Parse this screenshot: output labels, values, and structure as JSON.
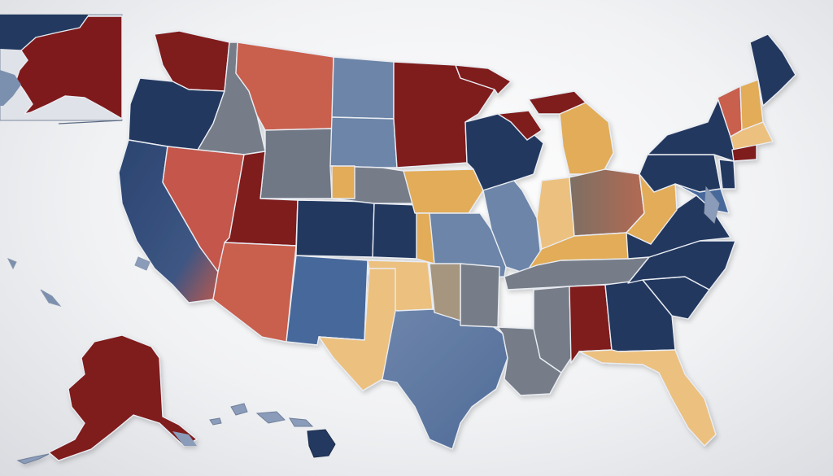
{
  "map": {
    "kind": "choropleth-us-states",
    "labels": [],
    "colors": {
      "dark_blue": "#23395f",
      "mid_blue": "#46679a",
      "steel_blue": "#6c85a8",
      "slate_gray": "#767d88",
      "dark_red": "#7f1a1c",
      "coral": "#c4574b",
      "gold": "#e2ac58",
      "sand": "#ecc07e",
      "tan_gray": "#a6967f"
    }
  },
  "inset": {
    "alaska_top": "alaska",
    "alaska_bottom": "alaska",
    "hawaii": "hawaii"
  }
}
